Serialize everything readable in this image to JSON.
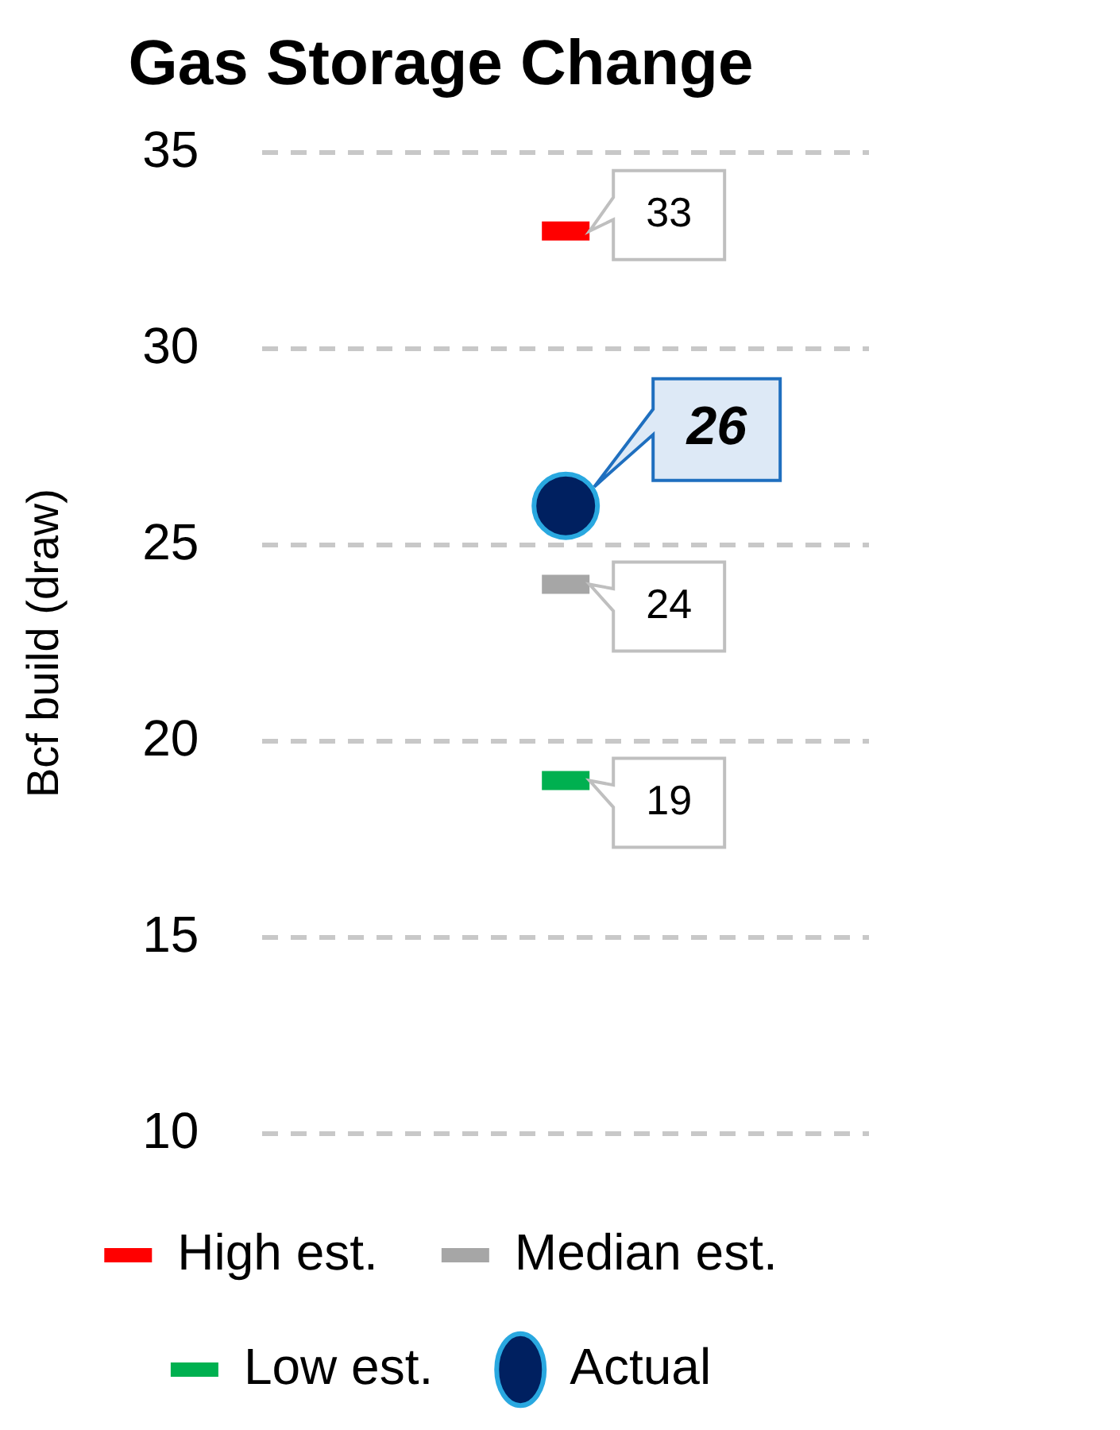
{
  "chart_data": {
    "type": "scatter",
    "title": "Gas Storage Change",
    "ylabel": "Bcf build (draw)",
    "categories": [
      null
    ],
    "series": [
      {
        "name": "High est.",
        "color": "#ff0000",
        "values": [
          33
        ]
      },
      {
        "name": "Median est.",
        "color": "#a6a6a6",
        "values": [
          24
        ]
      },
      {
        "name": "Low est.",
        "color": "#00b050",
        "values": [
          19
        ]
      },
      {
        "name": "Actual",
        "color": "#002060",
        "values": [
          26
        ],
        "marker": "circle"
      }
    ],
    "ylim": [
      10,
      35
    ],
    "yticks": [
      10,
      15,
      20,
      25,
      30,
      35
    ],
    "grid": "y",
    "legend": "bottom",
    "data_labels": true
  }
}
